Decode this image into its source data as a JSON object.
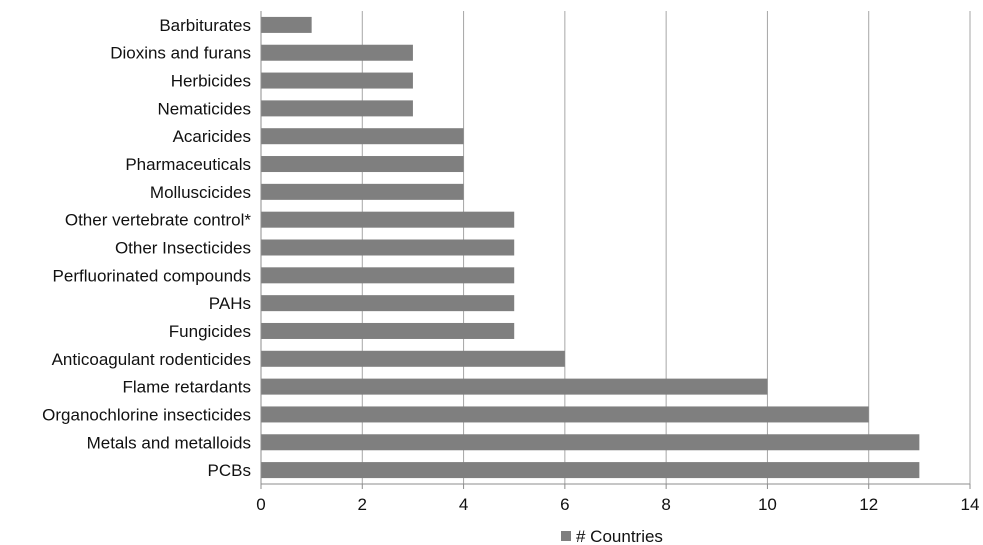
{
  "chart_data": {
    "type": "bar",
    "orientation": "horizontal",
    "title": "",
    "xlabel": "",
    "ylabel": "",
    "categories": [
      "Barbiturates",
      "Dioxins and furans",
      "Herbicides",
      "Nematicides",
      "Acaricides",
      "Pharmaceuticals",
      "Molluscicides",
      "Other vertebrate control*",
      "Other Insecticides",
      "Perfluorinated compounds",
      "PAHs",
      "Fungicides",
      "Anticoagulant rodenticides",
      "Flame retardants",
      "Organochlorine insecticides",
      "Metals and metalloids",
      "PCBs"
    ],
    "series": [
      {
        "name": "# Countries",
        "values": [
          1,
          3,
          3,
          3,
          4,
          4,
          4,
          5,
          5,
          5,
          5,
          5,
          6,
          10,
          12,
          13,
          13
        ],
        "color": "#7f7f7f"
      }
    ],
    "xlim": [
      0,
      14
    ],
    "xticks": [
      0,
      2,
      4,
      6,
      8,
      10,
      12,
      14
    ],
    "grid": "vertical",
    "legend": "bottom-center",
    "gridColor": "#a6a6a6",
    "axisColor": "#8c8c8c"
  }
}
